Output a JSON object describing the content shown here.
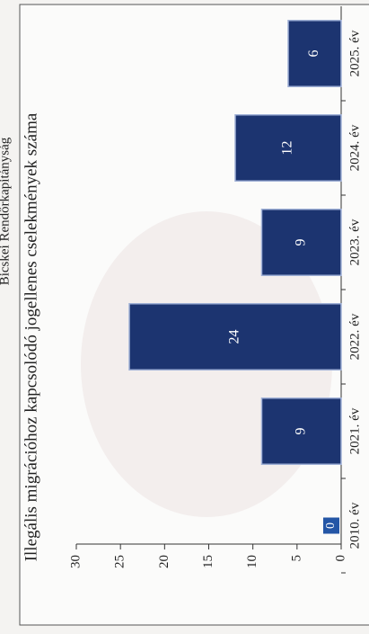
{
  "header": "Bicskei Rendőrkapitányság",
  "chart_data": {
    "type": "bar",
    "title": "Illegális migrációhoz kapcsolódó jogellenes cselekmények száma",
    "categories": [
      "2010. év",
      "2021. év",
      "2022. év",
      "2023. év",
      "2024. év",
      "2025. év"
    ],
    "values": [
      0,
      9,
      24,
      9,
      12,
      6
    ],
    "color": "#1c3470",
    "ylim": [
      0,
      30
    ],
    "yticks": [
      0,
      5,
      10,
      15,
      20,
      25,
      30
    ]
  }
}
